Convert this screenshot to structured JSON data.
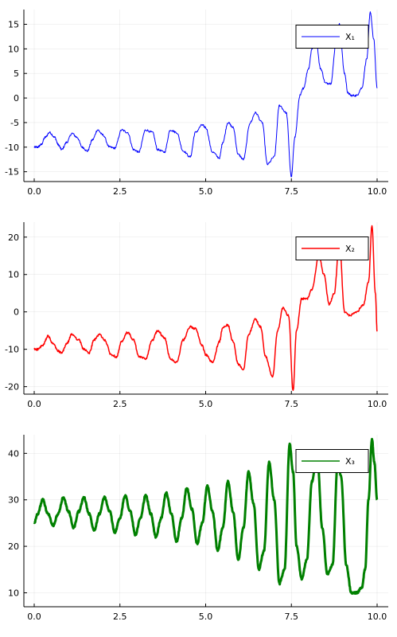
{
  "chart_data": [
    {
      "type": "line",
      "title": "",
      "xlabel": "",
      "ylabel": "",
      "xlim": [
        0,
        10
      ],
      "ylim": [
        -17,
        18
      ],
      "xticks": [
        0,
        2.5,
        5,
        7.5,
        10
      ],
      "xtick_labels": [
        "0.0",
        "2.5",
        "5.0",
        "7.5",
        "10.0"
      ],
      "yticks": [
        -15,
        -10,
        -5,
        0,
        5,
        10,
        15
      ],
      "ytick_labels": [
        "-15",
        "-10",
        "-5",
        "0",
        "5",
        "10",
        "15"
      ],
      "grid": true,
      "legend_position": "top-right",
      "series": [
        {
          "name": "X₁",
          "color": "#0000ff",
          "line_width": 1,
          "x": [
            0,
            0.1,
            0.2,
            0.32,
            0.45,
            0.6,
            0.7,
            0.8,
            0.95,
            1.1,
            1.25,
            1.4,
            1.55,
            1.7,
            1.85,
            2.0,
            2.2,
            2.35,
            2.55,
            2.72,
            2.9,
            3.05,
            3.25,
            3.45,
            3.6,
            3.8,
            3.97,
            4.15,
            4.35,
            4.55,
            4.7,
            4.9,
            5.0,
            5.2,
            5.4,
            5.5,
            5.65,
            5.8,
            5.95,
            6.1,
            6.3,
            6.45,
            6.65,
            6.8,
            7.0,
            7.15,
            7.35,
            7.5,
            7.6,
            7.75,
            7.85,
            8.0,
            8.1,
            8.2,
            8.35,
            8.5,
            8.65,
            8.8,
            8.9,
            9.05,
            9.15,
            9.25,
            9.4,
            9.55,
            9.7,
            9.8,
            9.9,
            10.0
          ],
          "y": [
            -10.0,
            -10.0,
            -9.5,
            -8.0,
            -7.0,
            -8.0,
            -9.5,
            -10.5,
            -9.0,
            -7.2,
            -8.0,
            -10.0,
            -10.8,
            -8.5,
            -6.5,
            -7.5,
            -10.0,
            -10.2,
            -6.5,
            -7.0,
            -10.5,
            -11.0,
            -6.5,
            -7.0,
            -10.5,
            -11.0,
            -6.5,
            -7.0,
            -10.8,
            -12.0,
            -7.0,
            -5.5,
            -6.0,
            -11.0,
            -12.2,
            -9.0,
            -5.0,
            -6.0,
            -11.5,
            -12.5,
            -5.0,
            -3.0,
            -5.0,
            -13.5,
            -12.0,
            -1.5,
            -3.0,
            -16.0,
            -8.0,
            0.5,
            2.0,
            6.0,
            10.0,
            13.0,
            6.0,
            3.0,
            3.0,
            11.0,
            15.0,
            5.0,
            1.0,
            0.5,
            0.5,
            2.0,
            8.0,
            17.5,
            12.0,
            2.0
          ]
        }
      ]
    },
    {
      "type": "line",
      "title": "",
      "xlabel": "",
      "ylabel": "",
      "xlim": [
        0,
        10
      ],
      "ylim": [
        -22,
        24
      ],
      "xticks": [
        0,
        2.5,
        5,
        7.5,
        10
      ],
      "xtick_labels": [
        "0.0",
        "2.5",
        "5.0",
        "7.5",
        "10.0"
      ],
      "yticks": [
        -20,
        -10,
        0,
        10,
        20
      ],
      "ytick_labels": [
        "-20",
        "-10",
        "0",
        "10",
        "20"
      ],
      "grid": true,
      "legend_position": "top-right",
      "series": [
        {
          "name": "X₂",
          "color": "#ff0000",
          "line_width": 1.5,
          "x": [
            0,
            0.1,
            0.25,
            0.4,
            0.55,
            0.7,
            0.8,
            0.95,
            1.1,
            1.3,
            1.45,
            1.6,
            1.75,
            1.9,
            2.05,
            2.25,
            2.4,
            2.55,
            2.72,
            2.9,
            3.05,
            3.25,
            3.45,
            3.6,
            3.8,
            3.97,
            4.15,
            4.35,
            4.55,
            4.7,
            4.9,
            5.0,
            5.2,
            5.4,
            5.5,
            5.65,
            5.8,
            5.95,
            6.1,
            6.25,
            6.45,
            6.6,
            6.75,
            6.95,
            7.1,
            7.25,
            7.42,
            7.55,
            7.65,
            7.8,
            7.95,
            8.1,
            8.3,
            8.45,
            8.6,
            8.75,
            8.9,
            9.05,
            9.2,
            9.4,
            9.6,
            9.75,
            9.85,
            9.95,
            10.0
          ],
          "y": [
            -10.0,
            -10.0,
            -9.0,
            -6.5,
            -8.5,
            -10.5,
            -11.0,
            -8.5,
            -6.0,
            -7.5,
            -10.0,
            -11.0,
            -7.5,
            -6.0,
            -7.5,
            -11.5,
            -12.0,
            -8.0,
            -5.5,
            -7.5,
            -12.0,
            -12.5,
            -7.5,
            -5.0,
            -7.0,
            -12.5,
            -13.5,
            -7.5,
            -4.0,
            -4.5,
            -9.0,
            -11.5,
            -13.5,
            -8.0,
            -4.0,
            -3.5,
            -8.0,
            -14.0,
            -15.5,
            -6.0,
            -2.0,
            -4.0,
            -12.0,
            -17.5,
            -5.0,
            1.0,
            -1.0,
            -21.0,
            -5.0,
            3.5,
            3.5,
            6.0,
            15.0,
            10.0,
            2.0,
            5.0,
            18.5,
            0.0,
            -1.0,
            0.0,
            2.0,
            8.0,
            23.0,
            5.0,
            -5.0
          ]
        }
      ]
    },
    {
      "type": "line",
      "title": "",
      "xlabel": "",
      "ylabel": "",
      "xlim": [
        0,
        10
      ],
      "ylim": [
        7,
        44
      ],
      "xticks": [
        0,
        2.5,
        5,
        7.5,
        10
      ],
      "xtick_labels": [
        "0.0",
        "2.5",
        "5.0",
        "7.5",
        "10.0"
      ],
      "yticks": [
        10,
        20,
        30,
        40
      ],
      "ytick_labels": [
        "10",
        "20",
        "30",
        "40"
      ],
      "grid": true,
      "legend_position": "top-right",
      "series": [
        {
          "name": "X₃",
          "color": "#008000",
          "line_width": 3,
          "x": [
            0,
            0.1,
            0.25,
            0.4,
            0.55,
            0.7,
            0.85,
            1.0,
            1.15,
            1.3,
            1.45,
            1.6,
            1.75,
            1.9,
            2.05,
            2.2,
            2.35,
            2.5,
            2.65,
            2.8,
            2.95,
            3.1,
            3.25,
            3.4,
            3.55,
            3.7,
            3.85,
            4.0,
            4.15,
            4.3,
            4.45,
            4.6,
            4.75,
            4.9,
            5.05,
            5.2,
            5.35,
            5.5,
            5.65,
            5.8,
            5.95,
            6.1,
            6.25,
            6.4,
            6.55,
            6.7,
            6.85,
            7.0,
            7.15,
            7.3,
            7.45,
            7.55,
            7.65,
            7.8,
            7.95,
            8.1,
            8.25,
            8.4,
            8.55,
            8.7,
            8.85,
            8.95,
            9.1,
            9.25,
            9.4,
            9.55,
            9.65,
            9.75,
            9.85,
            9.92,
            10.0
          ],
          "y": [
            25.0,
            27.0,
            30.0,
            27.0,
            24.5,
            27.0,
            30.5,
            27.5,
            24.0,
            27.5,
            30.5,
            27.0,
            23.5,
            27.0,
            30.5,
            27.5,
            23.0,
            26.0,
            31.0,
            27.5,
            22.5,
            26.0,
            31.0,
            27.0,
            22.0,
            26.0,
            31.5,
            27.0,
            21.0,
            26.0,
            32.5,
            28.0,
            20.5,
            25.0,
            33.0,
            27.5,
            19.0,
            24.0,
            34.0,
            27.5,
            17.0,
            24.0,
            36.0,
            29.0,
            15.0,
            19.0,
            38.0,
            30.0,
            12.0,
            15.0,
            42.0,
            36.0,
            20.0,
            13.0,
            17.0,
            34.0,
            40.0,
            24.0,
            14.0,
            16.0,
            38.0,
            35.0,
            16.0,
            10.0,
            10.0,
            11.0,
            15.0,
            30.0,
            43.0,
            38.0,
            30.0
          ]
        }
      ]
    }
  ]
}
